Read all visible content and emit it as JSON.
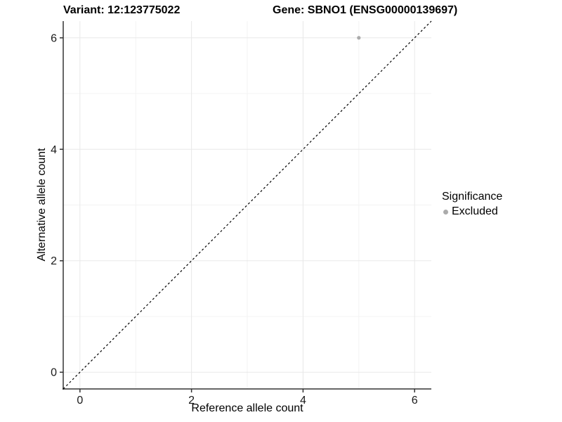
{
  "chart_data": {
    "type": "scatter",
    "title_left": "Variant: 12:123775022",
    "title_right": "Gene: SBNO1 (ENSG00000139697)",
    "xlabel": "Reference allele count",
    "ylabel": "Alternative allele count",
    "xticks": [
      0,
      2,
      4,
      6
    ],
    "yticks": [
      0,
      2,
      4,
      6
    ],
    "minor_xticks": [
      1,
      3,
      5
    ],
    "minor_yticks": [
      1,
      3,
      5
    ],
    "xlim": [
      -0.3,
      6.3
    ],
    "ylim": [
      -0.3,
      6.3
    ],
    "grid": "on",
    "points": [
      {
        "x": 5,
        "y": 6,
        "series": "Excluded"
      }
    ],
    "reference_line": {
      "equation": "y = x",
      "style": "dashed",
      "x1": -0.3,
      "y1": -0.3,
      "x2": 6.3,
      "y2": 6.3
    },
    "legend": {
      "position": "right",
      "title": "Significance",
      "items": [
        {
          "label": "Excluded",
          "color": "#ababab",
          "marker": "circle"
        }
      ]
    },
    "colors": {
      "point": "#ababab",
      "axis_line": "#333333",
      "tick_mark": "#333333",
      "grid_major": "#e8e8e8",
      "grid_minor": "#f3f3f3",
      "reference_line": "#000000",
      "text": "#000000",
      "background": "#ffffff"
    }
  }
}
